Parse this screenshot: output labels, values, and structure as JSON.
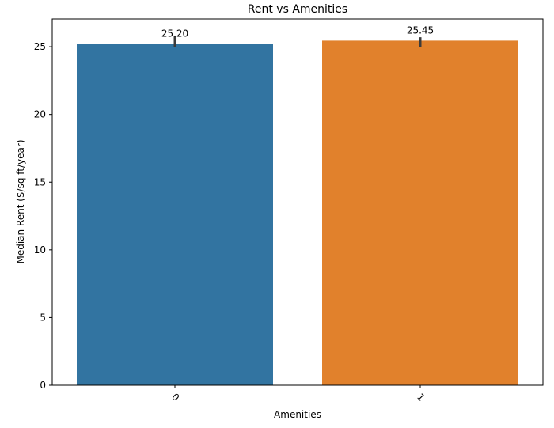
{
  "chart_data": {
    "type": "bar",
    "title": "Rent vs Amenities",
    "xlabel": "Amenities",
    "ylabel": "Median Rent ($/sq ft/year)",
    "categories": [
      "0",
      "1"
    ],
    "values": [
      25.2,
      25.45
    ],
    "value_labels": [
      "25.20",
      "25.45"
    ],
    "error_bars": [
      [
        25.0,
        25.8
      ],
      [
        25.0,
        25.7
      ]
    ],
    "colors": [
      "#3274a1",
      "#e1812c"
    ],
    "errorbar_color": "#3b3b3b",
    "ylim": [
      0,
      27.05
    ],
    "yticks": [
      0,
      5,
      10,
      15,
      20,
      25
    ],
    "ytick_labels": [
      "0",
      "5",
      "10",
      "15",
      "20",
      "25"
    ],
    "xtick_rotation_deg": 45,
    "grid": false,
    "legend": false
  }
}
